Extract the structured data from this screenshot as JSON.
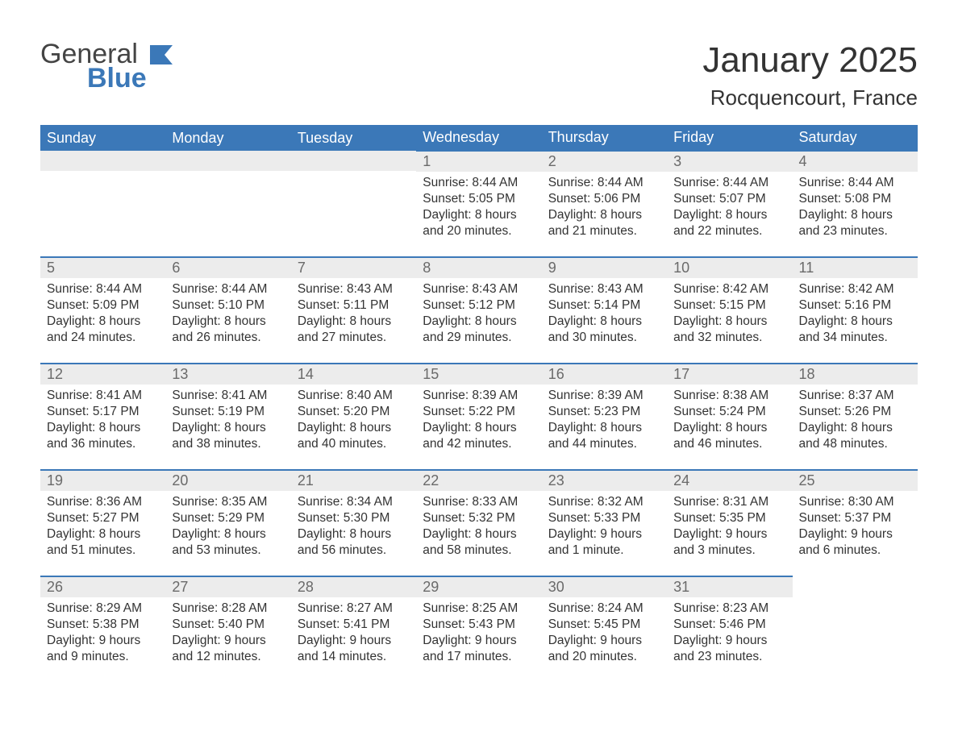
{
  "logo": {
    "word1": "General",
    "word2": "Blue",
    "flag_color": "#3b78b8",
    "text_color": "#444444"
  },
  "header": {
    "month_title": "January 2025",
    "location": "Rocquencourt, France"
  },
  "colors": {
    "header_bg": "#3b78b8",
    "header_text": "#ffffff",
    "daynum_bg": "#ececec",
    "daynum_text": "#6a6a6a",
    "body_text": "#333333",
    "rule": "#3b78b8",
    "page_bg": "#ffffff"
  },
  "daysOfWeek": [
    "Sunday",
    "Monday",
    "Tuesday",
    "Wednesday",
    "Thursday",
    "Friday",
    "Saturday"
  ],
  "weeks": [
    [
      null,
      null,
      null,
      {
        "n": "1",
        "sunrise": "Sunrise: 8:44 AM",
        "sunset": "Sunset: 5:05 PM",
        "dl1": "Daylight: 8 hours",
        "dl2": "and 20 minutes."
      },
      {
        "n": "2",
        "sunrise": "Sunrise: 8:44 AM",
        "sunset": "Sunset: 5:06 PM",
        "dl1": "Daylight: 8 hours",
        "dl2": "and 21 minutes."
      },
      {
        "n": "3",
        "sunrise": "Sunrise: 8:44 AM",
        "sunset": "Sunset: 5:07 PM",
        "dl1": "Daylight: 8 hours",
        "dl2": "and 22 minutes."
      },
      {
        "n": "4",
        "sunrise": "Sunrise: 8:44 AM",
        "sunset": "Sunset: 5:08 PM",
        "dl1": "Daylight: 8 hours",
        "dl2": "and 23 minutes."
      }
    ],
    [
      {
        "n": "5",
        "sunrise": "Sunrise: 8:44 AM",
        "sunset": "Sunset: 5:09 PM",
        "dl1": "Daylight: 8 hours",
        "dl2": "and 24 minutes."
      },
      {
        "n": "6",
        "sunrise": "Sunrise: 8:44 AM",
        "sunset": "Sunset: 5:10 PM",
        "dl1": "Daylight: 8 hours",
        "dl2": "and 26 minutes."
      },
      {
        "n": "7",
        "sunrise": "Sunrise: 8:43 AM",
        "sunset": "Sunset: 5:11 PM",
        "dl1": "Daylight: 8 hours",
        "dl2": "and 27 minutes."
      },
      {
        "n": "8",
        "sunrise": "Sunrise: 8:43 AM",
        "sunset": "Sunset: 5:12 PM",
        "dl1": "Daylight: 8 hours",
        "dl2": "and 29 minutes."
      },
      {
        "n": "9",
        "sunrise": "Sunrise: 8:43 AM",
        "sunset": "Sunset: 5:14 PM",
        "dl1": "Daylight: 8 hours",
        "dl2": "and 30 minutes."
      },
      {
        "n": "10",
        "sunrise": "Sunrise: 8:42 AM",
        "sunset": "Sunset: 5:15 PM",
        "dl1": "Daylight: 8 hours",
        "dl2": "and 32 minutes."
      },
      {
        "n": "11",
        "sunrise": "Sunrise: 8:42 AM",
        "sunset": "Sunset: 5:16 PM",
        "dl1": "Daylight: 8 hours",
        "dl2": "and 34 minutes."
      }
    ],
    [
      {
        "n": "12",
        "sunrise": "Sunrise: 8:41 AM",
        "sunset": "Sunset: 5:17 PM",
        "dl1": "Daylight: 8 hours",
        "dl2": "and 36 minutes."
      },
      {
        "n": "13",
        "sunrise": "Sunrise: 8:41 AM",
        "sunset": "Sunset: 5:19 PM",
        "dl1": "Daylight: 8 hours",
        "dl2": "and 38 minutes."
      },
      {
        "n": "14",
        "sunrise": "Sunrise: 8:40 AM",
        "sunset": "Sunset: 5:20 PM",
        "dl1": "Daylight: 8 hours",
        "dl2": "and 40 minutes."
      },
      {
        "n": "15",
        "sunrise": "Sunrise: 8:39 AM",
        "sunset": "Sunset: 5:22 PM",
        "dl1": "Daylight: 8 hours",
        "dl2": "and 42 minutes."
      },
      {
        "n": "16",
        "sunrise": "Sunrise: 8:39 AM",
        "sunset": "Sunset: 5:23 PM",
        "dl1": "Daylight: 8 hours",
        "dl2": "and 44 minutes."
      },
      {
        "n": "17",
        "sunrise": "Sunrise: 8:38 AM",
        "sunset": "Sunset: 5:24 PM",
        "dl1": "Daylight: 8 hours",
        "dl2": "and 46 minutes."
      },
      {
        "n": "18",
        "sunrise": "Sunrise: 8:37 AM",
        "sunset": "Sunset: 5:26 PM",
        "dl1": "Daylight: 8 hours",
        "dl2": "and 48 minutes."
      }
    ],
    [
      {
        "n": "19",
        "sunrise": "Sunrise: 8:36 AM",
        "sunset": "Sunset: 5:27 PM",
        "dl1": "Daylight: 8 hours",
        "dl2": "and 51 minutes."
      },
      {
        "n": "20",
        "sunrise": "Sunrise: 8:35 AM",
        "sunset": "Sunset: 5:29 PM",
        "dl1": "Daylight: 8 hours",
        "dl2": "and 53 minutes."
      },
      {
        "n": "21",
        "sunrise": "Sunrise: 8:34 AM",
        "sunset": "Sunset: 5:30 PM",
        "dl1": "Daylight: 8 hours",
        "dl2": "and 56 minutes."
      },
      {
        "n": "22",
        "sunrise": "Sunrise: 8:33 AM",
        "sunset": "Sunset: 5:32 PM",
        "dl1": "Daylight: 8 hours",
        "dl2": "and 58 minutes."
      },
      {
        "n": "23",
        "sunrise": "Sunrise: 8:32 AM",
        "sunset": "Sunset: 5:33 PM",
        "dl1": "Daylight: 9 hours",
        "dl2": "and 1 minute."
      },
      {
        "n": "24",
        "sunrise": "Sunrise: 8:31 AM",
        "sunset": "Sunset: 5:35 PM",
        "dl1": "Daylight: 9 hours",
        "dl2": "and 3 minutes."
      },
      {
        "n": "25",
        "sunrise": "Sunrise: 8:30 AM",
        "sunset": "Sunset: 5:37 PM",
        "dl1": "Daylight: 9 hours",
        "dl2": "and 6 minutes."
      }
    ],
    [
      {
        "n": "26",
        "sunrise": "Sunrise: 8:29 AM",
        "sunset": "Sunset: 5:38 PM",
        "dl1": "Daylight: 9 hours",
        "dl2": "and 9 minutes."
      },
      {
        "n": "27",
        "sunrise": "Sunrise: 8:28 AM",
        "sunset": "Sunset: 5:40 PM",
        "dl1": "Daylight: 9 hours",
        "dl2": "and 12 minutes."
      },
      {
        "n": "28",
        "sunrise": "Sunrise: 8:27 AM",
        "sunset": "Sunset: 5:41 PM",
        "dl1": "Daylight: 9 hours",
        "dl2": "and 14 minutes."
      },
      {
        "n": "29",
        "sunrise": "Sunrise: 8:25 AM",
        "sunset": "Sunset: 5:43 PM",
        "dl1": "Daylight: 9 hours",
        "dl2": "and 17 minutes."
      },
      {
        "n": "30",
        "sunrise": "Sunrise: 8:24 AM",
        "sunset": "Sunset: 5:45 PM",
        "dl1": "Daylight: 9 hours",
        "dl2": "and 20 minutes."
      },
      {
        "n": "31",
        "sunrise": "Sunrise: 8:23 AM",
        "sunset": "Sunset: 5:46 PM",
        "dl1": "Daylight: 9 hours",
        "dl2": "and 23 minutes."
      },
      null
    ]
  ]
}
